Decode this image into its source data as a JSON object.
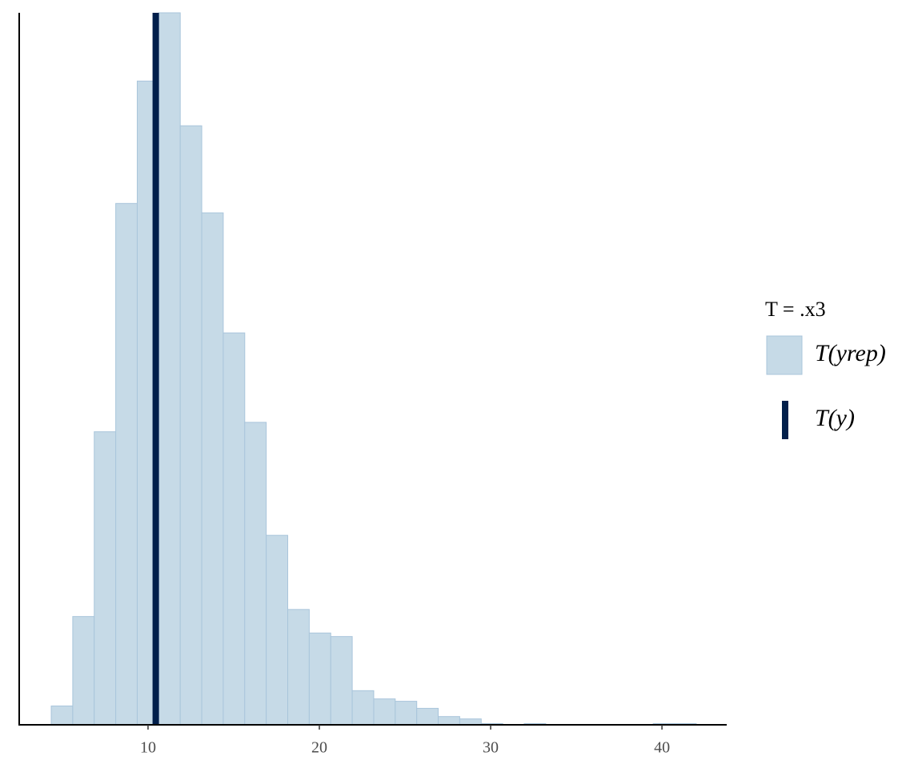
{
  "chart_data": {
    "type": "histogram",
    "bins": [
      4.35,
      5.605,
      6.86,
      8.115,
      9.37,
      10.625,
      11.88,
      13.135,
      14.39,
      15.645,
      16.9,
      18.155,
      19.41,
      20.665,
      21.92,
      23.175,
      24.43,
      25.685,
      26.94,
      28.195,
      29.45,
      30.705,
      31.96,
      33.215,
      34.47,
      35.725,
      36.98,
      38.235,
      39.49,
      40.745,
      42.0
    ],
    "series": [
      {
        "name": "T(yrep)",
        "color": "#c6dae7",
        "edge_color": "#a9c5db",
        "values": [
          16,
          92,
          249,
          443,
          547,
          605,
          509,
          435,
          333,
          257,
          161,
          98,
          78,
          75,
          29,
          22,
          20,
          14,
          7,
          5,
          1,
          0,
          1,
          0,
          0,
          0,
          0,
          0,
          1,
          1
        ]
      },
      {
        "name": "T(y)",
        "color": "#011f4b",
        "value": 10.45
      }
    ],
    "legend_title": "T = .x3",
    "xlim": [
      2.48,
      43.78
    ],
    "ylim": [
      0,
      605
    ],
    "xticks": [
      10,
      20,
      30,
      40
    ]
  }
}
